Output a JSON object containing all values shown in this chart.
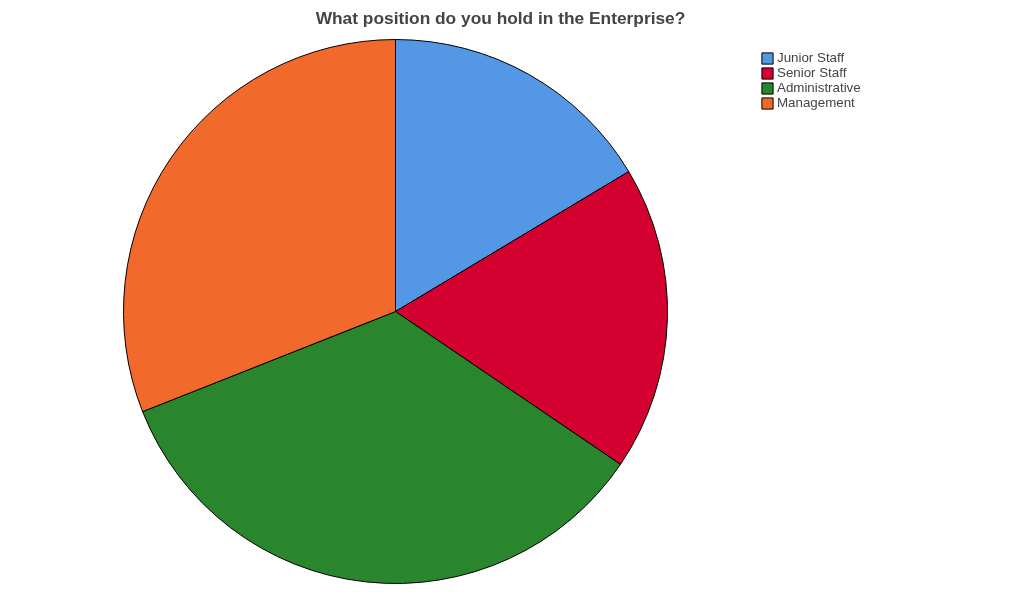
{
  "chart_data": {
    "type": "pie",
    "title": "What position do you hold in the Enterprise?",
    "categories": [
      "Junior Staff",
      "Senior Staff",
      "Administrative",
      "Management"
    ],
    "values": [
      16.4,
      18.1,
      34.5,
      31.0
    ],
    "colors": [
      "#5497e5",
      "#d40030",
      "#29862c",
      "#f2692c"
    ],
    "legend": "top right"
  }
}
